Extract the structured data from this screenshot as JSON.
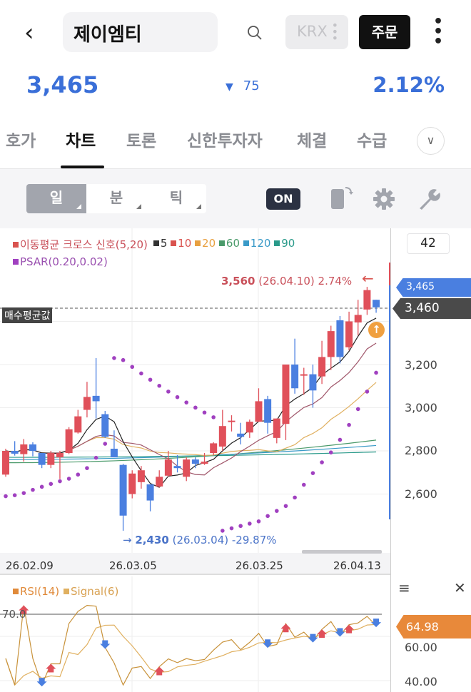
{
  "header": {
    "stock_name": "제이엠티",
    "exchange": "KRX",
    "order_label": "주문"
  },
  "quote": {
    "price": "3,465",
    "change_arrow": "▼",
    "change": "75",
    "change_pct": "2.12%",
    "color": "#3a6fd8"
  },
  "tabs": [
    {
      "label": "호가"
    },
    {
      "label": "차트",
      "active": true
    },
    {
      "label": "토론"
    },
    {
      "label": "신한투자자"
    },
    {
      "label": "체결"
    },
    {
      "label": "수급"
    }
  ],
  "toolbar": {
    "periods": [
      {
        "label": "일",
        "selected": true
      },
      {
        "label": "분"
      },
      {
        "label": "틱"
      }
    ],
    "on_badge": "ON",
    "icons": [
      "rotate-screen-icon",
      "gear-icon",
      "wrench-icon"
    ]
  },
  "chart": {
    "candle_count": "42",
    "legend_cross": "이동평균 크로스 신호(5,20)",
    "legend_ma": [
      {
        "label": "5",
        "color": "#333333"
      },
      {
        "label": "10",
        "color": "#d9534f"
      },
      {
        "label": "20",
        "color": "#e8a040"
      },
      {
        "label": "60",
        "color": "#4a9a6a"
      },
      {
        "label": "120",
        "color": "#3a9ac8"
      },
      {
        "label": "90",
        "color": "#2a9a8a"
      }
    ],
    "legend_psar": "PSAR(0.20,0.02)",
    "avg_price_label": "매수평균값",
    "avg_price_tag": "3,460",
    "current_price_tag": "3,465",
    "high_annotation": {
      "price": "3,560",
      "date": "(26.04.10)",
      "pct": "2.74%",
      "arrow": "←"
    },
    "low_annotation": {
      "arrow": "→",
      "price": "2,430",
      "date": "(26.03.04)",
      "pct": "-29.87%"
    },
    "y_labels": [
      "3,200",
      "3,000",
      "2,800",
      "2,600"
    ],
    "x_labels": [
      "26.02.09",
      "26.03.05",
      "26.03.25",
      "26.04.13"
    ],
    "colors": {
      "up": "#e0505a",
      "down": "#4a7fe0",
      "psar": "#a040c0"
    }
  },
  "chart_data": {
    "type": "candlestick",
    "x_ticks": [
      "26.02.09",
      "26.03.05",
      "26.03.25",
      "26.04.13"
    ],
    "y_ticks": [
      2600,
      2800,
      3000,
      3200
    ],
    "ylim": [
      2430,
      3580
    ],
    "ohlc": [
      [
        2690,
        2810,
        2680,
        2800
      ],
      [
        2800,
        2845,
        2778,
        2787
      ],
      [
        2785,
        2855,
        2750,
        2830
      ],
      [
        2830,
        2840,
        2775,
        2800
      ],
      [
        2790,
        2790,
        2720,
        2735
      ],
      [
        2735,
        2800,
        2720,
        2790
      ],
      [
        2770,
        2800,
        2670,
        2790
      ],
      [
        2790,
        2910,
        2785,
        2900
      ],
      [
        2885,
        2990,
        2880,
        2960
      ],
      [
        2990,
        3120,
        2955,
        3050
      ],
      [
        3055,
        3230,
        2950,
        3030
      ],
      [
        2970,
        2985,
        2860,
        2865
      ],
      [
        2810,
        2895,
        2770,
        2770
      ],
      [
        2735,
        2740,
        2430,
        2500
      ],
      [
        2600,
        2710,
        2580,
        2695
      ],
      [
        2655,
        2730,
        2625,
        2710
      ],
      [
        2645,
        2645,
        2520,
        2570
      ],
      [
        2635,
        2710,
        2630,
        2680
      ],
      [
        2685,
        2800,
        2680,
        2760
      ],
      [
        2730,
        2780,
        2700,
        2720
      ],
      [
        2680,
        2770,
        2660,
        2760
      ],
      [
        2760,
        2770,
        2720,
        2740
      ],
      [
        2740,
        2790,
        2735,
        2750
      ],
      [
        2790,
        2840,
        2780,
        2835
      ],
      [
        2820,
        2990,
        2800,
        2915
      ],
      [
        2935,
        2965,
        2890,
        2940
      ],
      [
        2880,
        2930,
        2830,
        2865
      ],
      [
        2885,
        2945,
        2860,
        2935
      ],
      [
        2935,
        3090,
        2935,
        3030
      ],
      [
        3040,
        3055,
        2880,
        2930
      ],
      [
        2860,
        2950,
        2835,
        2950
      ],
      [
        2925,
        3200,
        2850,
        3200
      ],
      [
        3200,
        3320,
        3065,
        3090
      ],
      [
        3150,
        3185,
        3060,
        3155
      ],
      [
        3155,
        3200,
        3000,
        3080
      ],
      [
        3145,
        3310,
        3110,
        3235
      ],
      [
        3235,
        3380,
        3175,
        3355
      ],
      [
        3405,
        3425,
        3205,
        3235
      ],
      [
        3280,
        3445,
        3265,
        3400
      ],
      [
        3395,
        3500,
        3335,
        3430
      ],
      [
        3455,
        3560,
        3430,
        3545
      ],
      [
        3500,
        3500,
        3440,
        3465
      ]
    ],
    "long_ma": {
      "ma60": [
        2745,
        2850
      ],
      "ma120": [
        2760,
        2825
      ],
      "ma90": [
        2770,
        2795
      ]
    }
  },
  "rsi": {
    "legend_rsi": "RSI(14)",
    "legend_signal": "Signal(6)",
    "level_label": "70.0",
    "y_labels": [
      "60.00",
      "40.00"
    ],
    "current": "64.98",
    "colors": {
      "rsi": "#c8923a",
      "signal": "#e0b060",
      "tag": "#e8893a"
    },
    "menu_icon": "≡",
    "close_icon": "✕"
  }
}
